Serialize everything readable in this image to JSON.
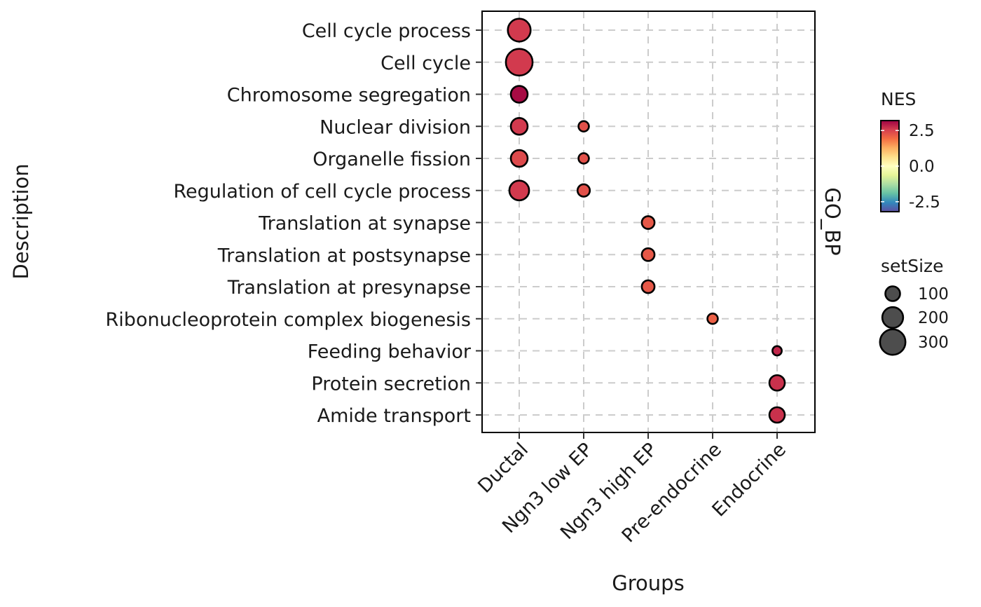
{
  "chart_data": {
    "type": "scatter",
    "subtype": "dot-plot",
    "xlabel": "Groups",
    "ylabel": "Description",
    "facet_label": "GO_BP",
    "categories_x": [
      "Ductal",
      "Ngn3 low EP",
      "Ngn3 high EP",
      "Pre-endocrine",
      "Endocrine"
    ],
    "categories_y": [
      "Cell cycle process",
      "Cell cycle",
      "Chromosome segregation",
      "Nuclear division",
      "Organelle fission",
      "Regulation of cell cycle process",
      "Translation at synapse",
      "Translation at postsynapse",
      "Translation at presynapse",
      "Ribonucleoprotein complex biogenesis",
      "Feeding behavior",
      "Protein secretion",
      "Amide transport"
    ],
    "points": [
      {
        "x": "Ductal",
        "y": "Cell cycle process",
        "NES": 2.6,
        "setSize": 240
      },
      {
        "x": "Ductal",
        "y": "Cell cycle",
        "NES": 2.6,
        "setSize": 330
      },
      {
        "x": "Ductal",
        "y": "Chromosome segregation",
        "NES": 3.1,
        "setSize": 130
      },
      {
        "x": "Ductal",
        "y": "Nuclear division",
        "NES": 2.6,
        "setSize": 130
      },
      {
        "x": "Ductal",
        "y": "Organelle fission",
        "NES": 2.4,
        "setSize": 130
      },
      {
        "x": "Ductal",
        "y": "Regulation of cell cycle process",
        "NES": 2.6,
        "setSize": 180
      },
      {
        "x": "Ngn3 low EP",
        "y": "Nuclear division",
        "NES": 2.3,
        "setSize": 50
      },
      {
        "x": "Ngn3 low EP",
        "y": "Organelle fission",
        "NES": 2.3,
        "setSize": 50
      },
      {
        "x": "Ngn3 low EP",
        "y": "Regulation of cell cycle process",
        "NES": 2.3,
        "setSize": 70
      },
      {
        "x": "Ngn3 high EP",
        "y": "Translation at synapse",
        "NES": 2.2,
        "setSize": 75
      },
      {
        "x": "Ngn3 high EP",
        "y": "Translation at postsynapse",
        "NES": 2.2,
        "setSize": 75
      },
      {
        "x": "Ngn3 high EP",
        "y": "Translation at presynapse",
        "NES": 2.2,
        "setSize": 75
      },
      {
        "x": "Pre-endocrine",
        "y": "Ribonucleoprotein complex biogenesis",
        "NES": 2.1,
        "setSize": 50
      },
      {
        "x": "Endocrine",
        "y": "Feeding behavior",
        "NES": 2.8,
        "setSize": 40
      },
      {
        "x": "Endocrine",
        "y": "Protein secretion",
        "NES": 2.7,
        "setSize": 110
      },
      {
        "x": "Endocrine",
        "y": "Amide transport",
        "NES": 2.7,
        "setSize": 110
      }
    ],
    "color_legend": {
      "title": "NES",
      "ticks": [
        2.5,
        0.0,
        -2.5
      ],
      "tick_labels": [
        "2.5",
        "0.0",
        "-2.5"
      ],
      "range": [
        -3.2,
        3.2
      ],
      "palette": [
        "#5e4fa2",
        "#3288bd",
        "#66c2a5",
        "#abdda4",
        "#e6f598",
        "#ffffbf",
        "#fee08b",
        "#fdae61",
        "#f46d43",
        "#d53e4f",
        "#9e0142"
      ]
    },
    "size_legend": {
      "title": "setSize",
      "values": [
        100,
        200,
        300
      ],
      "labels": [
        "100",
        "200",
        "300"
      ]
    },
    "grid": true,
    "legend_position": "right"
  }
}
